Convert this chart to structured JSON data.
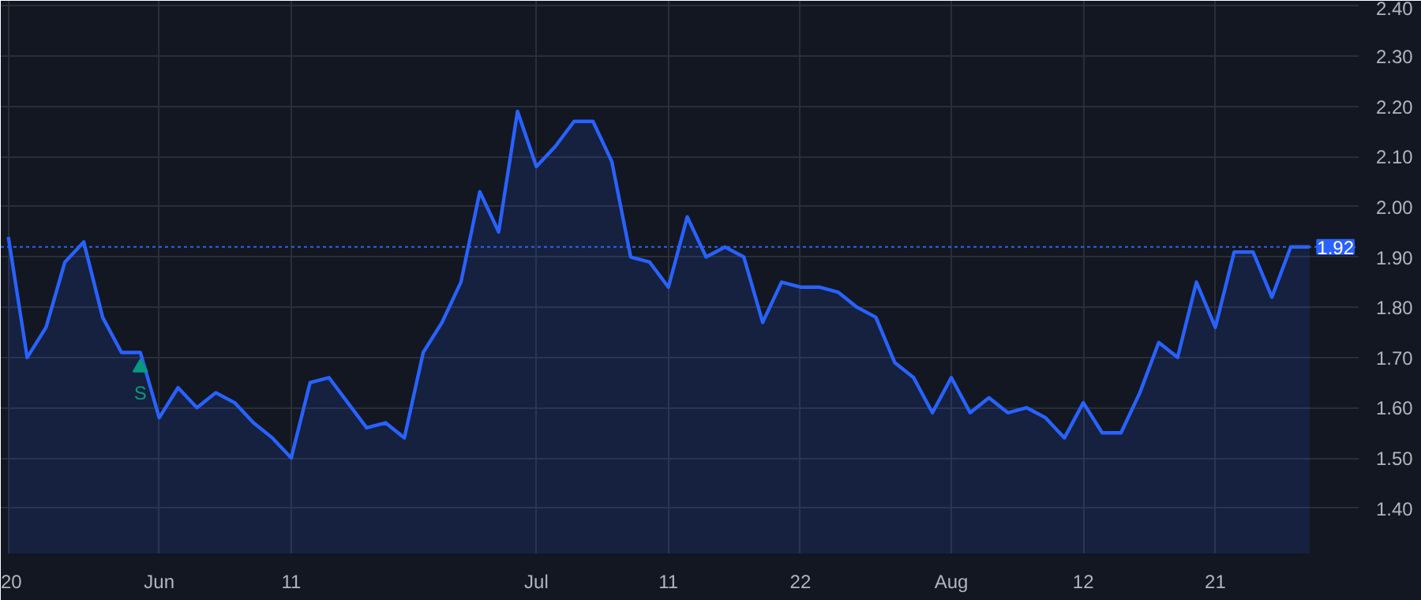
{
  "chart_data": {
    "type": "area",
    "categories": [
      "20",
      null,
      null,
      null,
      null,
      null,
      null,
      null,
      "Jun",
      null,
      null,
      null,
      null,
      null,
      null,
      "11",
      null,
      null,
      null,
      null,
      null,
      null,
      null,
      null,
      null,
      null,
      null,
      null,
      "Jul",
      null,
      null,
      null,
      null,
      null,
      null,
      "11",
      null,
      null,
      null,
      null,
      null,
      null,
      "22",
      null,
      null,
      null,
      null,
      null,
      null,
      null,
      "Aug",
      null,
      null,
      null,
      null,
      null,
      null,
      "12",
      null,
      null,
      null,
      null,
      null,
      null,
      "21",
      null,
      null,
      null,
      null,
      null
    ],
    "series": [
      {
        "color": "#2962ff",
        "values": [
          1.94,
          1.7,
          1.76,
          1.89,
          1.93,
          1.78,
          1.71,
          1.71,
          1.58,
          1.64,
          1.6,
          1.63,
          1.61,
          1.57,
          1.54,
          1.5,
          1.65,
          1.66,
          1.61,
          1.56,
          1.57,
          1.54,
          1.71,
          1.77,
          1.85,
          2.03,
          1.95,
          2.19,
          2.08,
          2.12,
          2.17,
          2.17,
          2.09,
          1.9,
          1.89,
          1.84,
          1.98,
          1.9,
          1.92,
          1.9,
          1.77,
          1.85,
          1.84,
          1.84,
          1.83,
          1.8,
          1.78,
          1.69,
          1.66,
          1.59,
          1.66,
          1.59,
          1.62,
          1.59,
          1.6,
          1.58,
          1.54,
          1.61,
          1.55,
          1.55,
          1.63,
          1.73,
          1.7,
          1.85,
          1.76,
          1.91,
          1.91,
          1.82,
          1.92,
          1.92
        ]
      },
      {
        "type": "scatter",
        "name": "S",
        "color": "#089981",
        "marker": "triangle",
        "values": [
          null,
          null,
          null,
          null,
          null,
          null,
          null,
          1.68,
          null,
          null,
          null,
          null,
          null,
          null,
          null,
          null,
          null,
          null,
          null,
          null,
          null,
          null,
          null,
          null,
          null,
          null,
          null,
          null,
          null,
          null,
          null,
          null,
          null,
          null,
          null,
          null,
          null,
          null,
          null,
          null,
          null,
          null,
          null,
          null,
          null,
          null,
          null,
          null,
          null,
          null,
          null,
          null,
          null,
          null,
          null,
          null,
          null,
          null,
          null,
          null,
          null,
          null,
          null,
          null,
          null,
          null,
          null,
          null,
          null,
          null
        ]
      }
    ],
    "ylim": [
      1.31,
      2.41
    ],
    "yticks": [
      {
        "value": 1.4,
        "label": "1.40"
      },
      {
        "value": 1.5,
        "label": "1.50"
      },
      {
        "value": 1.6,
        "label": "1.60"
      },
      {
        "value": 1.7,
        "label": "1.70"
      },
      {
        "value": 1.8,
        "label": "1.80"
      },
      {
        "value": 1.9,
        "label": "1.90"
      },
      {
        "value": 2.0,
        "label": "2.00"
      },
      {
        "value": 2.1,
        "label": "2.10"
      },
      {
        "value": 2.2,
        "label": "2.20"
      },
      {
        "value": 2.3,
        "label": "2.30"
      },
      {
        "value": 2.4,
        "label": "2.40"
      }
    ],
    "ref_lines": [
      {
        "axis": "y",
        "value": 1.92,
        "label": "1.92",
        "color": "#2962ff",
        "line_style": "dotted"
      }
    ],
    "grid": true,
    "marker": "none",
    "line_style": "solid"
  }
}
